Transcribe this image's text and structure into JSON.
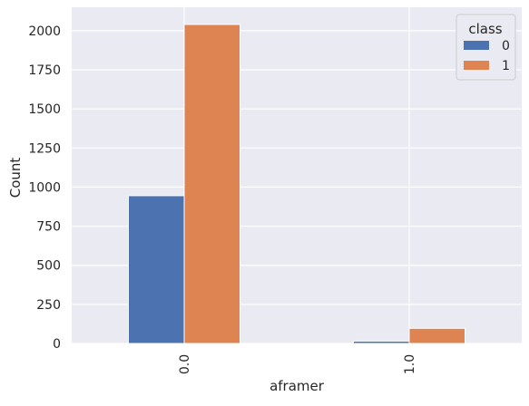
{
  "chart_data": {
    "type": "bar",
    "categories": [
      "0.0",
      "1.0"
    ],
    "series": [
      {
        "name": "0",
        "values": [
          945,
          15
        ],
        "color": "#4C72B0"
      },
      {
        "name": "1",
        "values": [
          2040,
          97
        ],
        "color": "#DD8452"
      }
    ],
    "xlabel": "aframer",
    "ylabel": "Count",
    "ylim": [
      0,
      2150
    ],
    "yticks": [
      0,
      250,
      500,
      750,
      1000,
      1250,
      1500,
      1750,
      2000
    ],
    "grid": true,
    "legend": {
      "title": "class",
      "position": "top-right"
    },
    "colors": {
      "background": "#EAEAF2",
      "grid": "#FFFFFF"
    }
  }
}
